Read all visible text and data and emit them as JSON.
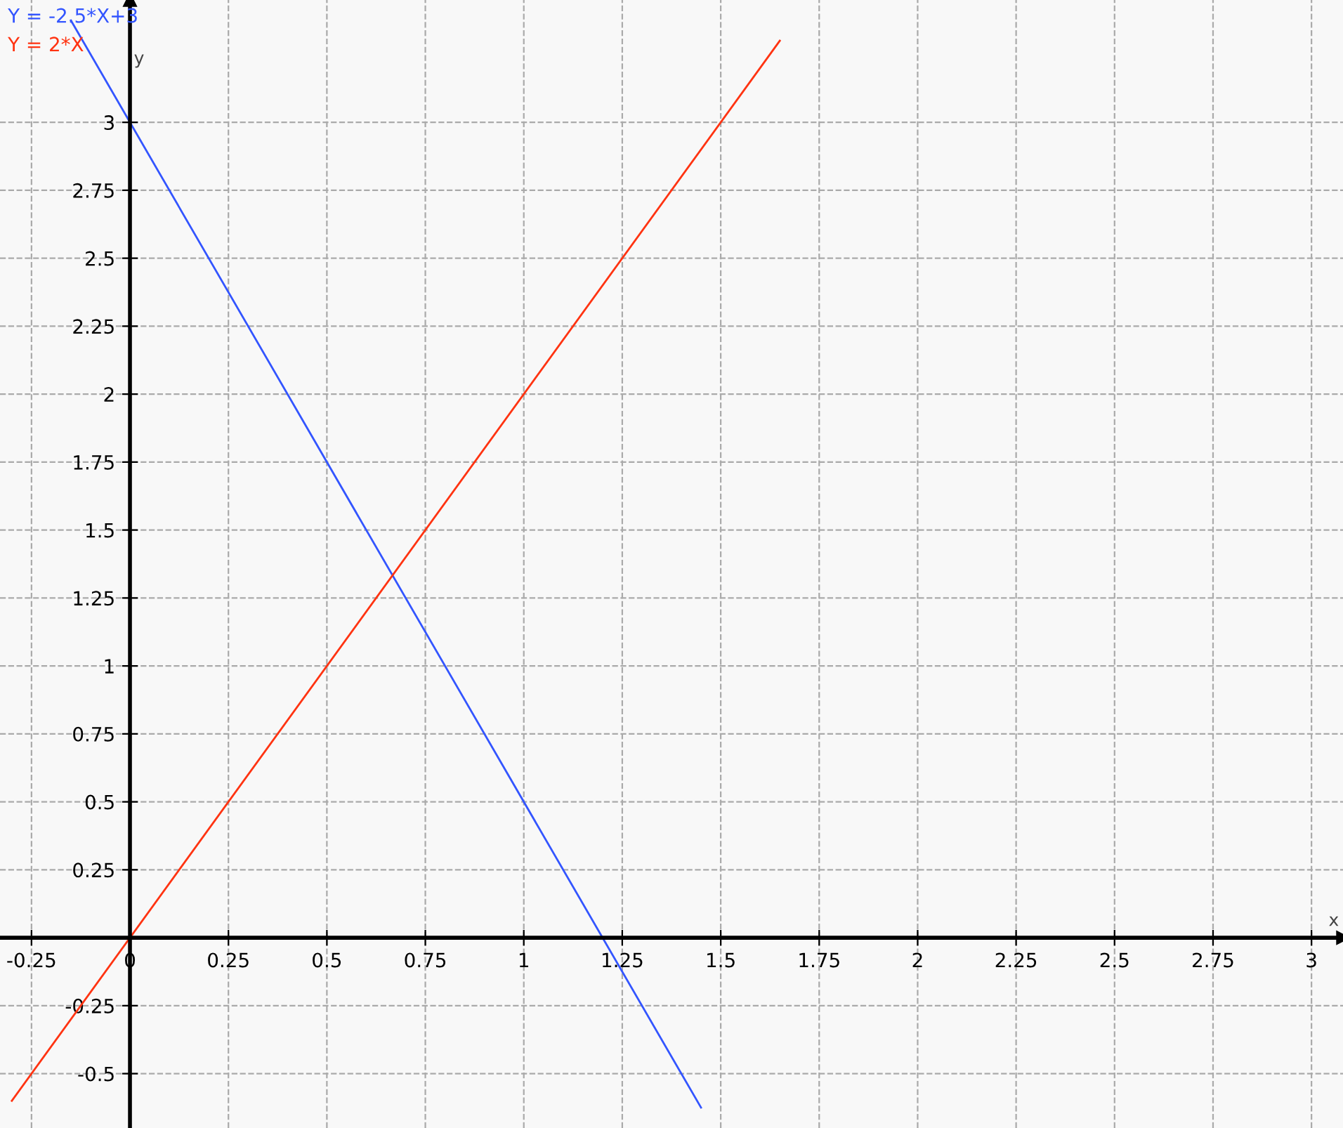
{
  "chart_data": {
    "type": "line",
    "xlabel": "x",
    "ylabel": "y",
    "series": [
      {
        "name": "Y = -2.5*X+3",
        "color": "#3355ff",
        "x": [
          -0.15,
          1.45
        ],
        "values": [
          3.375,
          -0.625
        ]
      },
      {
        "name": "Y = 2*X",
        "color": "#ff3311",
        "x": [
          -0.3,
          1.65
        ],
        "values": [
          -0.6,
          3.3
        ]
      }
    ],
    "xlim": [
      -0.33,
      3.08
    ],
    "ylim": [
      -0.7,
      3.45
    ],
    "xticks": [
      -0.25,
      0,
      0.25,
      0.5,
      0.75,
      1,
      1.25,
      1.5,
      1.75,
      2,
      2.25,
      2.5,
      2.75,
      3
    ],
    "yticks": [
      -0.5,
      -0.25,
      {
        "value": 0,
        "label": null
      },
      0.25,
      0.5,
      0.75,
      1,
      1.25,
      1.5,
      1.75,
      2,
      2.25,
      2.5,
      2.75,
      3
    ],
    "grid": true,
    "legend": "top left",
    "marker": "none",
    "line_style": "solid"
  }
}
